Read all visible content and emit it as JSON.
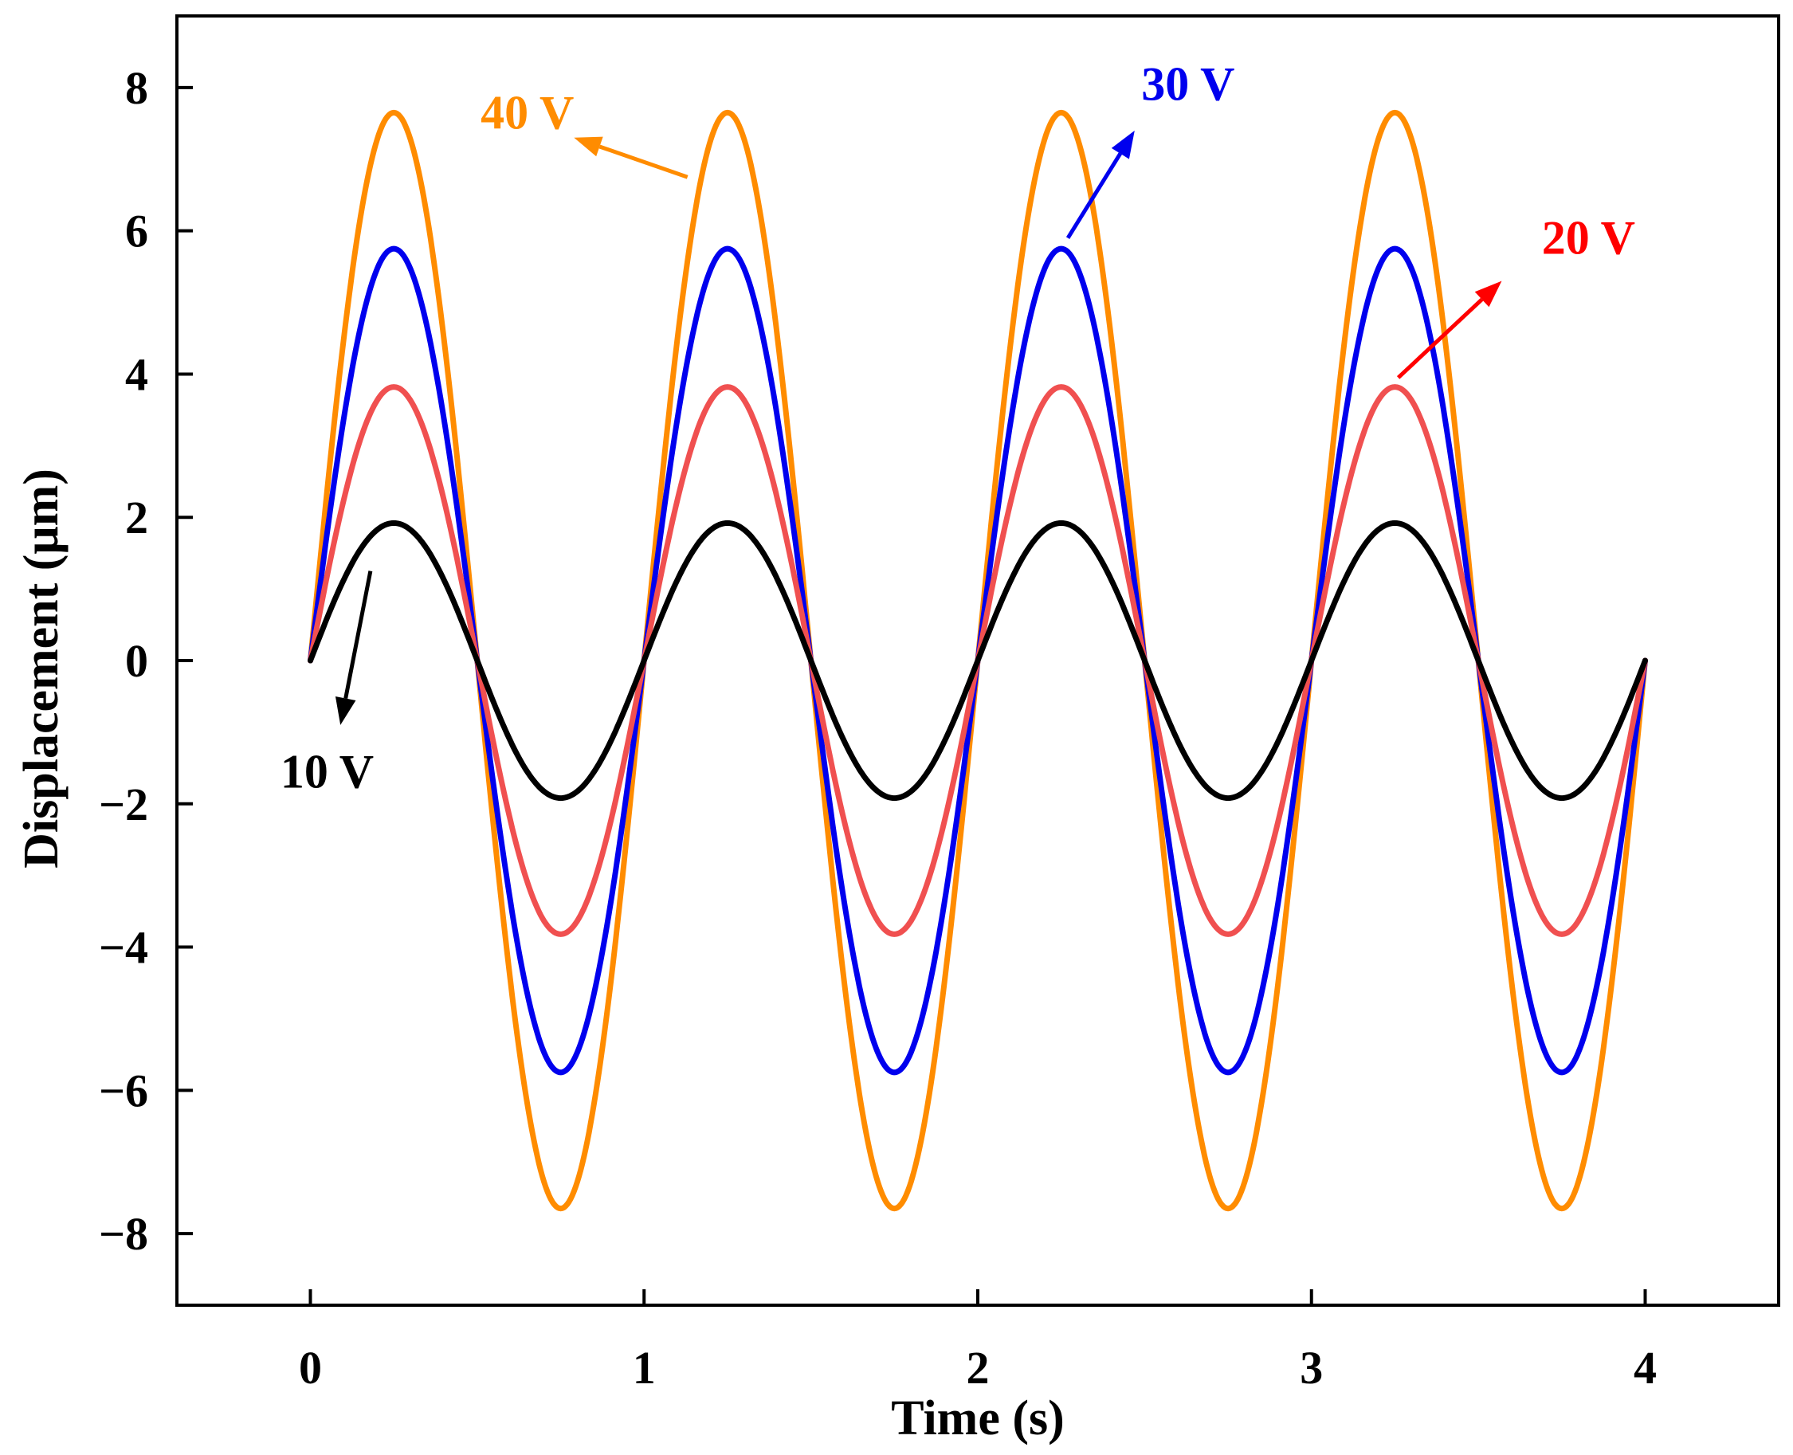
{
  "chart_data": {
    "type": "line",
    "title": "",
    "xlabel": "Time (s)",
    "ylabel": "Displacement (μm)",
    "xlim": [
      -0.4,
      4.4
    ],
    "ylim": [
      -9.0,
      9.0
    ],
    "xticks": [
      0,
      1,
      2,
      3,
      4
    ],
    "xtick_labels": [
      "0",
      "1",
      "2",
      "3",
      "4"
    ],
    "yticks": [
      -8,
      -6,
      -4,
      -2,
      0,
      2,
      4,
      6,
      8
    ],
    "ytick_labels": [
      "−8",
      "−6",
      "−4",
      "−2",
      "0",
      "2",
      "4",
      "6",
      "8"
    ],
    "grid": false,
    "x": [
      0,
      0.25,
      0.5,
      0.75,
      1,
      1.25,
      1.5,
      1.75,
      2,
      2.25,
      2.5,
      2.75,
      3,
      3.25,
      3.5,
      3.75,
      4
    ],
    "series": [
      {
        "name": "40 V",
        "color": "#FF8C00",
        "amplitude": 7.65,
        "values": [
          0,
          7.65,
          0,
          -7.65,
          0,
          7.65,
          0,
          -7.65,
          0,
          7.65,
          0,
          -7.65,
          0,
          7.65,
          0,
          -7.65,
          0
        ]
      },
      {
        "name": "30 V",
        "color": "#0000EE",
        "amplitude": 5.75,
        "values": [
          0,
          5.75,
          0,
          -5.75,
          0,
          5.75,
          0,
          -5.75,
          0,
          5.75,
          0,
          -5.75,
          0,
          5.75,
          0,
          -5.75,
          0
        ]
      },
      {
        "name": "20 V",
        "color": "#F05050",
        "amplitude": 3.82,
        "values": [
          0,
          3.82,
          0,
          -3.82,
          0,
          3.82,
          0,
          -3.82,
          0,
          3.82,
          0,
          -3.82,
          0,
          3.82,
          0,
          -3.82,
          0
        ]
      },
      {
        "name": "10 V",
        "color": "#000000",
        "amplitude": 1.92,
        "values": [
          0,
          1.92,
          0,
          -1.92,
          0,
          1.92,
          0,
          -1.92,
          0,
          1.92,
          0,
          -1.92,
          0,
          1.92,
          0,
          -1.92,
          0
        ]
      }
    ],
    "annotations": [
      {
        "text": "40 V",
        "color": "#FF8C00",
        "from": [
          1.13,
          6.75
        ],
        "to": [
          0.79,
          7.3
        ],
        "label_at": [
          0.65,
          7.65
        ]
      },
      {
        "text": "30 V",
        "color": "#0000EE",
        "from": [
          2.27,
          5.9
        ],
        "to": [
          2.47,
          7.4
        ],
        "label_at": [
          2.63,
          8.05
        ]
      },
      {
        "text": "20 V",
        "color": "#FF0000",
        "from": [
          3.26,
          3.95
        ],
        "to": [
          3.57,
          5.3
        ],
        "label_at": [
          3.83,
          5.9
        ]
      },
      {
        "text": "10 V",
        "color": "#000000",
        "from": [
          0.18,
          1.25
        ],
        "to": [
          0.09,
          -0.9
        ],
        "label_at": [
          0.05,
          -1.55
        ]
      }
    ]
  }
}
